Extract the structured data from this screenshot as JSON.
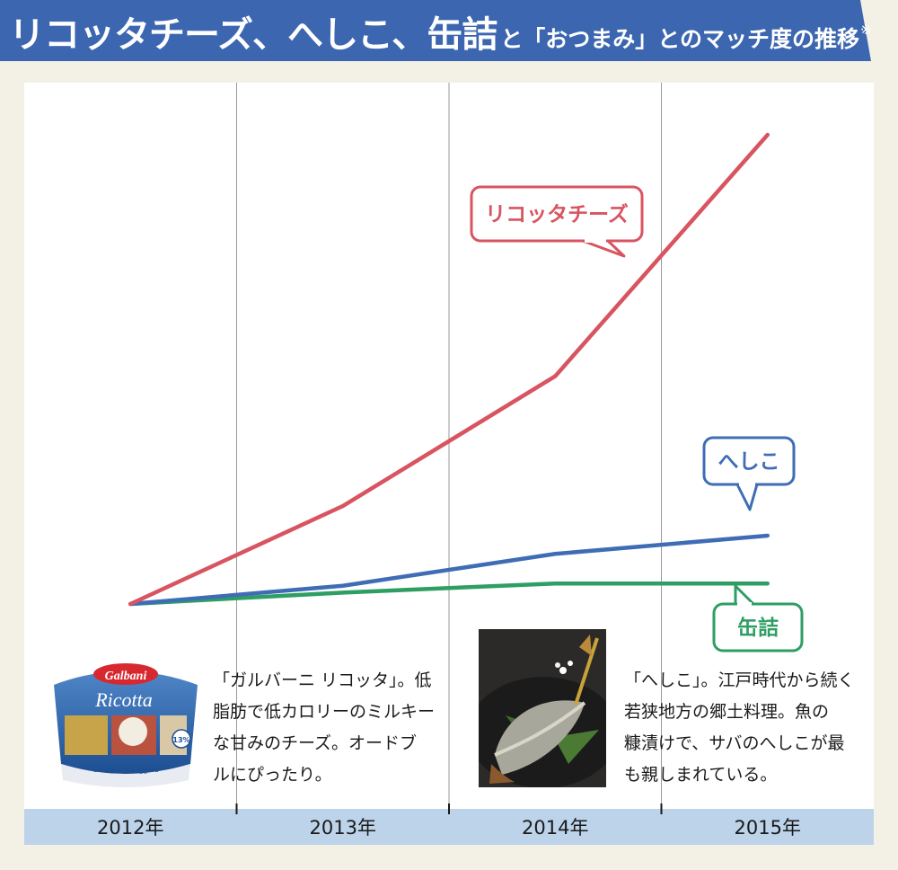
{
  "title": {
    "main": "リコッタチーズ、へしこ、缶詰",
    "sub": "と「おつまみ」とのマッチ度の推移",
    "note": "※"
  },
  "chart_data": {
    "type": "line",
    "title": "リコッタチーズ、へしこ、缶詰と「おつまみ」とのマッチ度の推移",
    "categories": [
      "2012年",
      "2013年",
      "2014年",
      "2015年"
    ],
    "series": [
      {
        "name": "リコッタチーズ",
        "values": [
          1.0,
          5.3,
          11.0,
          21.6
        ],
        "color": "#d85460"
      },
      {
        "name": "へしこ",
        "values": [
          1.0,
          1.8,
          3.2,
          4.0
        ],
        "color": "#3f6db5"
      },
      {
        "name": "缶詰",
        "values": [
          1.0,
          1.5,
          1.9,
          1.9
        ],
        "color": "#2e9e63"
      }
    ],
    "ylim": [
      0,
      24
    ],
    "grid": true,
    "legend": "callout labels"
  },
  "captions": {
    "ricotta": [
      "「ガルバーニ リコッタ」。低",
      "脂肪で低カロリーのミルキー",
      "な甘みのチーズ。オードブ",
      "ルにぴったり。"
    ],
    "heshiko": [
      "「へしこ」。江戸時代から続く",
      "若狭地方の郷土料理。魚の",
      "糠漬けで、サバのへしこが最",
      "も親しまれている。"
    ]
  },
  "photo_text": {
    "brand": "Galbani",
    "product": "Ricotta",
    "tagline": "Cremosa & Leggera",
    "fat": "13%"
  },
  "colors": {
    "title_bg": "#3c67b0",
    "background": "#f3f0e6",
    "axis_bar": "#bcd3ea"
  }
}
